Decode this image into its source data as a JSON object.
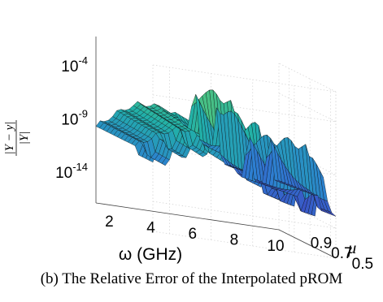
{
  "caption": "(b) The Relative Error of the Interpolated pROM",
  "chart_data": {
    "type": "surface",
    "x_axis": {
      "label": "ω (GHz)",
      "ticks": [
        2,
        4,
        6,
        8,
        10
      ],
      "range": [
        1.2,
        10
      ]
    },
    "y_axis": {
      "label": "μ",
      "ticks": [
        0.5,
        0.7,
        0.9
      ],
      "range": [
        0.45,
        1.0
      ]
    },
    "z_axis": {
      "label_numerator": "|Y − y|",
      "label_denominator": "|Y|",
      "scale": "log",
      "ticks": [
        "10-4",
        "10-9",
        "10-14"
      ],
      "tick_bases": [
        "10",
        "10",
        "10"
      ],
      "tick_exponents": [
        "-4",
        "-9",
        "-14"
      ]
    },
    "colormap": [
      "#3b1f8f",
      "#3f3fbf",
      "#2d7fd1",
      "#21b0a8",
      "#6ccf63",
      "#e9e53b"
    ],
    "grid": true
  }
}
